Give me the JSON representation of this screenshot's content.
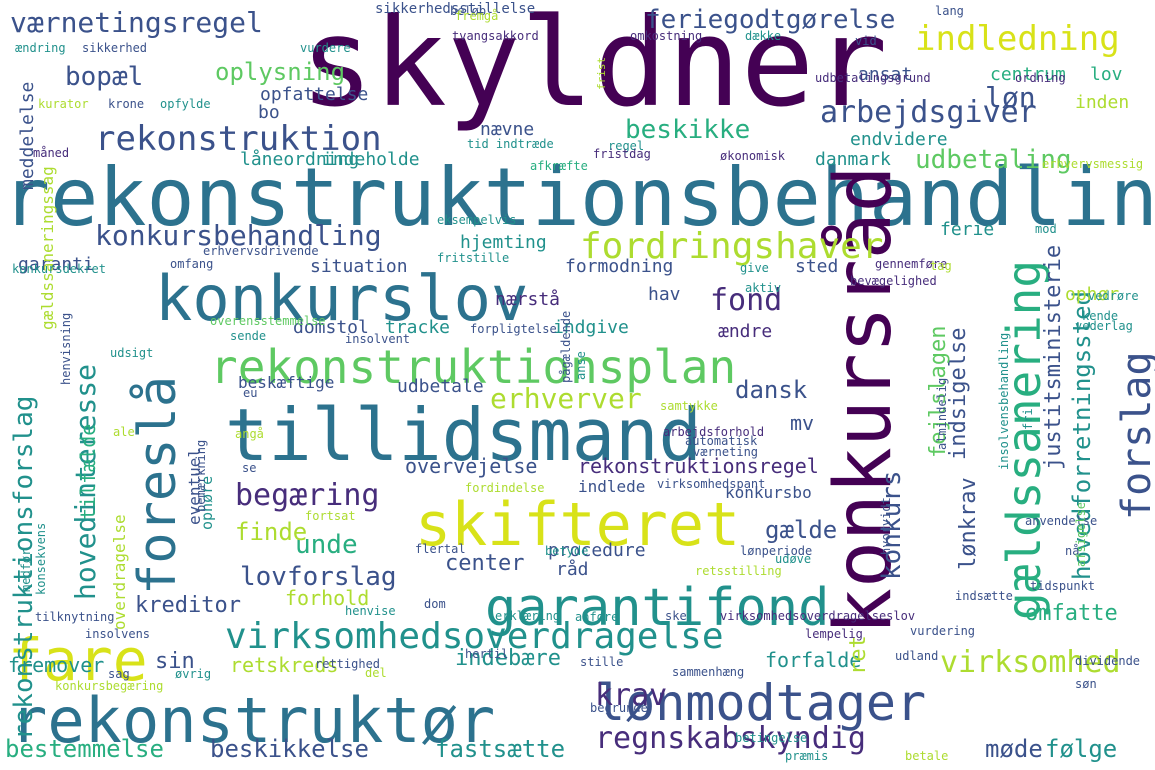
{
  "palette": {
    "purple": "#440154",
    "violet": "#472d7b",
    "indigo": "#3b528b",
    "blue": "#2c728e",
    "teal": "#21918c",
    "green": "#28ae80",
    "lime": "#5ec962",
    "yellowgreen": "#addc30",
    "yellow": "#d8e219"
  },
  "words": [
    {
      "text": "skyldner",
      "color": "purple"
    },
    {
      "text": "rekonstruktionsbehandling",
      "color": "blue"
    },
    {
      "text": "tillidsmand",
      "color": "blue"
    },
    {
      "text": "konkurslov",
      "color": "blue"
    },
    {
      "text": "rekonstruktør",
      "color": "blue"
    },
    {
      "text": "skifteret",
      "color": "yellow"
    },
    {
      "text": "garantifond",
      "color": "teal"
    },
    {
      "text": "rekonstruktionsplan",
      "color": "lime"
    },
    {
      "text": "konkursråd",
      "color": "purple"
    },
    {
      "text": "fare",
      "color": "yellow"
    },
    {
      "text": "lønmodtager",
      "color": "indigo"
    },
    {
      "text": "gældssanering",
      "color": "green"
    },
    {
      "text": "foreslå",
      "color": "blue"
    },
    {
      "text": "virksomhedsoverdragelse",
      "color": "teal"
    },
    {
      "text": "fordringshaver",
      "color": "yellowgreen"
    },
    {
      "text": "indledning",
      "color": "yellow"
    },
    {
      "text": "rekonstruktion",
      "color": "indigo"
    },
    {
      "text": "forslag",
      "color": "indigo"
    },
    {
      "text": "arbejdsgiver",
      "color": "indigo"
    },
    {
      "text": "konkursbehandling",
      "color": "indigo"
    },
    {
      "text": "værnetingsregel",
      "color": "indigo"
    },
    {
      "text": "feriegodtgørelse",
      "color": "indigo"
    },
    {
      "text": "regnskabskyndig",
      "color": "violet"
    },
    {
      "text": "virksomhed",
      "color": "yellowgreen"
    },
    {
      "text": "krav",
      "color": "violet"
    },
    {
      "text": "begæring",
      "color": "violet"
    },
    {
      "text": "beskikke",
      "color": "green"
    },
    {
      "text": "hovedinteresse",
      "color": "teal"
    },
    {
      "text": "rekonstruktionsforslag",
      "color": "teal"
    },
    {
      "text": "fond",
      "color": "violet"
    },
    {
      "text": "erhverver",
      "color": "yellowgreen"
    },
    {
      "text": "lovforslag",
      "color": "indigo"
    },
    {
      "text": "udbetaling",
      "color": "lime"
    },
    {
      "text": "bestemmelse",
      "color": "green"
    },
    {
      "text": "beskikkelse",
      "color": "indigo"
    },
    {
      "text": "fastsætte",
      "color": "teal"
    },
    {
      "text": "dansk",
      "color": "indigo"
    },
    {
      "text": "unde",
      "color": "green"
    },
    {
      "text": "finde",
      "color": "yellowgreen"
    },
    {
      "text": "gælde",
      "color": "indigo"
    },
    {
      "text": "center",
      "color": "indigo"
    },
    {
      "text": "kreditor",
      "color": "indigo"
    },
    {
      "text": "oplysning",
      "color": "lime"
    },
    {
      "text": "bopæl",
      "color": "indigo"
    },
    {
      "text": "løn",
      "color": "indigo"
    },
    {
      "text": "konkurs",
      "color": "indigo"
    },
    {
      "text": "indsigelse",
      "color": "indigo"
    },
    {
      "text": "lønkrav",
      "color": "indigo"
    },
    {
      "text": "fejlslagen",
      "color": "lime"
    },
    {
      "text": "hovedforretningssted",
      "color": "teal"
    },
    {
      "text": "justitsministerie",
      "color": "indigo"
    },
    {
      "text": "tilfælde",
      "color": "green"
    },
    {
      "text": "omfatte",
      "color": "green"
    },
    {
      "text": "følge",
      "color": "teal"
    },
    {
      "text": "møde",
      "color": "indigo"
    },
    {
      "text": "indebære",
      "color": "teal"
    },
    {
      "text": "sin",
      "color": "indigo"
    },
    {
      "text": "retskreds",
      "color": "yellowgreen"
    },
    {
      "text": "fremover",
      "color": "teal"
    },
    {
      "text": "overvejelse",
      "color": "indigo"
    },
    {
      "text": "rekonstruktionsregel",
      "color": "violet"
    },
    {
      "text": "procedure",
      "color": "indigo"
    },
    {
      "text": "råd",
      "color": "indigo"
    },
    {
      "text": "forhold",
      "color": "yellowgreen"
    },
    {
      "text": "forfalde",
      "color": "teal"
    },
    {
      "text": "sikkerhedsstillelse",
      "color": "indigo"
    },
    {
      "text": "opfattelse",
      "color": "indigo"
    },
    {
      "text": "bo",
      "color": "indigo"
    },
    {
      "text": "ansat",
      "color": "indigo"
    },
    {
      "text": "centrum",
      "color": "green"
    },
    {
      "text": "lov",
      "color": "green"
    },
    {
      "text": "inden",
      "color": "yellowgreen"
    },
    {
      "text": "endvidere",
      "color": "teal"
    },
    {
      "text": "danmark",
      "color": "teal"
    },
    {
      "text": "nævne",
      "color": "indigo"
    },
    {
      "text": "låneordning",
      "color": "teal"
    },
    {
      "text": "indeholde",
      "color": "teal"
    },
    {
      "text": "meddelelse",
      "color": "indigo"
    },
    {
      "text": "garanti",
      "color": "indigo"
    },
    {
      "text": "hjemting",
      "color": "teal"
    },
    {
      "text": "situation",
      "color": "indigo"
    },
    {
      "text": "formodning",
      "color": "indigo"
    },
    {
      "text": "sted",
      "color": "indigo"
    },
    {
      "text": "ferie",
      "color": "teal"
    },
    {
      "text": "nærstå",
      "color": "violet"
    },
    {
      "text": "hav",
      "color": "indigo"
    },
    {
      "text": "indgive",
      "color": "teal"
    },
    {
      "text": "ændre",
      "color": "violet"
    },
    {
      "text": "domstol",
      "color": "indigo"
    },
    {
      "text": "tracke",
      "color": "teal"
    },
    {
      "text": "mv",
      "color": "indigo"
    },
    {
      "text": "ophør",
      "color": "yellowgreen"
    },
    {
      "text": "gældssaneringssag",
      "color": "yellowgreen"
    },
    {
      "text": "overdragelse",
      "color": "yellowgreen"
    },
    {
      "text": "eventuel",
      "color": "indigo"
    },
    {
      "text": "beskæftige",
      "color": "indigo"
    },
    {
      "text": "udbetale",
      "color": "indigo"
    },
    {
      "text": "indlede",
      "color": "indigo"
    },
    {
      "text": "konkursbo",
      "color": "indigo"
    },
    {
      "text": "ophøre",
      "color": "teal"
    },
    {
      "text": "ret",
      "color": "yellowgreen"
    },
    {
      "text": "belob",
      "text_display": "beløb",
      "color": "indigo"
    },
    {
      "text": "frist",
      "color": "yellowgreen"
    },
    {
      "text": "lang",
      "color": "indigo"
    },
    {
      "text": "ændring",
      "color": "teal"
    },
    {
      "text": "sikkerhed",
      "color": "indigo"
    },
    {
      "text": "vurdere",
      "color": "teal"
    },
    {
      "text": "tvangsakkord",
      "color": "violet"
    },
    {
      "text": "omkostning",
      "color": "violet"
    },
    {
      "text": "dække",
      "color": "teal"
    },
    {
      "text": "vid",
      "color": "indigo"
    },
    {
      "text": "udbetalingsgrund",
      "color": "violet"
    },
    {
      "text": "ordning",
      "color": "violet"
    },
    {
      "text": "kurator",
      "color": "yellowgreen"
    },
    {
      "text": "krone",
      "color": "indigo"
    },
    {
      "text": "opfylde",
      "color": "teal"
    },
    {
      "text": "fremgå",
      "color": "yellowgreen"
    },
    {
      "text": "måned",
      "color": "violet"
    },
    {
      "text": "regel",
      "color": "teal"
    },
    {
      "text": "tid indtræde",
      "color": "teal"
    },
    {
      "text": "fristdag",
      "color": "violet"
    },
    {
      "text": "økonomisk",
      "color": "violet"
    },
    {
      "text": "afkræfte",
      "color": "green"
    },
    {
      "text": "erhvervsmessig",
      "color": "yellowgreen"
    },
    {
      "text": "eksempelvis",
      "color": "teal"
    },
    {
      "text": "mod",
      "color": "teal"
    },
    {
      "text": "erhvervsdrivende",
      "color": "indigo"
    },
    {
      "text": "omfang",
      "color": "indigo"
    },
    {
      "text": "konkursdekret",
      "color": "teal"
    },
    {
      "text": "fritstille",
      "color": "teal"
    },
    {
      "text": "give",
      "color": "teal"
    },
    {
      "text": "gennemføre",
      "color": "violet"
    },
    {
      "text": "tag",
      "color": "yellowgreen"
    },
    {
      "text": "bevægelighed",
      "color": "violet"
    },
    {
      "text": "aktiv",
      "color": "teal"
    },
    {
      "text": "vedrøre",
      "color": "teal"
    },
    {
      "text": "kende",
      "color": "teal"
    },
    {
      "text": "vederlag",
      "color": "teal"
    },
    {
      "text": "overensstemmelse",
      "color": "lime"
    },
    {
      "text": "forpligtelse",
      "color": "indigo"
    },
    {
      "text": "sende",
      "color": "teal"
    },
    {
      "text": "insolvent",
      "color": "indigo"
    },
    {
      "text": "udsigt",
      "color": "teal"
    },
    {
      "text": "henvisning",
      "color": "indigo"
    },
    {
      "text": "pågældende",
      "color": "indigo"
    },
    {
      "text": "anse",
      "color": "teal"
    },
    {
      "text": "eu",
      "color": "indigo"
    },
    {
      "text": "samtykke",
      "color": "yellowgreen"
    },
    {
      "text": "almindelig",
      "color": "indigo"
    },
    {
      "text": "insolvensbehandling",
      "color": "teal"
    },
    {
      "text": "fri",
      "color": "teal"
    },
    {
      "text": "ale",
      "color": "yellowgreen"
    },
    {
      "text": "angå",
      "color": "yellowgreen"
    },
    {
      "text": "arbejdsforhold",
      "color": "violet"
    },
    {
      "text": "automatisk",
      "color": "indigo"
    },
    {
      "text": "værneting",
      "color": "indigo"
    },
    {
      "text": "virksomhedspant",
      "color": "indigo"
    },
    {
      "text": "bemærkning",
      "color": "indigo"
    },
    {
      "text": "se",
      "color": "indigo"
    },
    {
      "text": "fordindelse",
      "color": "yellowgreen"
    },
    {
      "text": "hvorvidt",
      "color": "indigo"
    },
    {
      "text": "fortsat",
      "color": "yellowgreen"
    },
    {
      "text": "anvendelse",
      "color": "indigo"
    },
    {
      "text": "konsekvens",
      "color": "teal"
    },
    {
      "text": "medfør",
      "color": "teal"
    },
    {
      "text": "flertal",
      "color": "indigo"
    },
    {
      "text": "betyde",
      "color": "teal"
    },
    {
      "text": "lønperiode",
      "color": "indigo"
    },
    {
      "text": "udøve",
      "color": "teal"
    },
    {
      "text": "nå",
      "color": "indigo"
    },
    {
      "text": "afsigelse",
      "color": "lime"
    },
    {
      "text": "retsstilling",
      "color": "yellowgreen"
    },
    {
      "text": "tidspunkt",
      "color": "indigo"
    },
    {
      "text": "henvise",
      "color": "teal"
    },
    {
      "text": "dom",
      "color": "indigo"
    },
    {
      "text": "indsætte",
      "color": "indigo"
    },
    {
      "text": "tilknytning",
      "color": "indigo"
    },
    {
      "text": "erklæring",
      "color": "teal"
    },
    {
      "text": "anføre",
      "color": "teal"
    },
    {
      "text": "ske",
      "color": "indigo"
    },
    {
      "text": "virksomhedsoverdragelseslov",
      "color": "violet"
    },
    {
      "text": "lempelig",
      "color": "violet"
    },
    {
      "text": "vurdering",
      "color": "indigo"
    },
    {
      "text": "insolvens",
      "color": "indigo"
    },
    {
      "text": "stille",
      "color": "indigo"
    },
    {
      "text": "hertil",
      "color": "indigo"
    },
    {
      "text": "sammenhæng",
      "color": "indigo"
    },
    {
      "text": "udland",
      "color": "indigo"
    },
    {
      "text": "dividende",
      "color": "indigo"
    },
    {
      "text": "sag",
      "color": "indigo"
    },
    {
      "text": "øvrig",
      "color": "teal"
    },
    {
      "text": "del",
      "color": "yellowgreen"
    },
    {
      "text": "rettighed",
      "color": "indigo"
    },
    {
      "text": "konkursbegæring",
      "color": "yellowgreen"
    },
    {
      "text": "søn",
      "color": "indigo"
    },
    {
      "text": "begrunde",
      "color": "indigo"
    },
    {
      "text": "betingelse",
      "color": "teal"
    },
    {
      "text": "præmis",
      "color": "teal"
    },
    {
      "text": "betale",
      "color": "yellowgreen"
    }
  ]
}
